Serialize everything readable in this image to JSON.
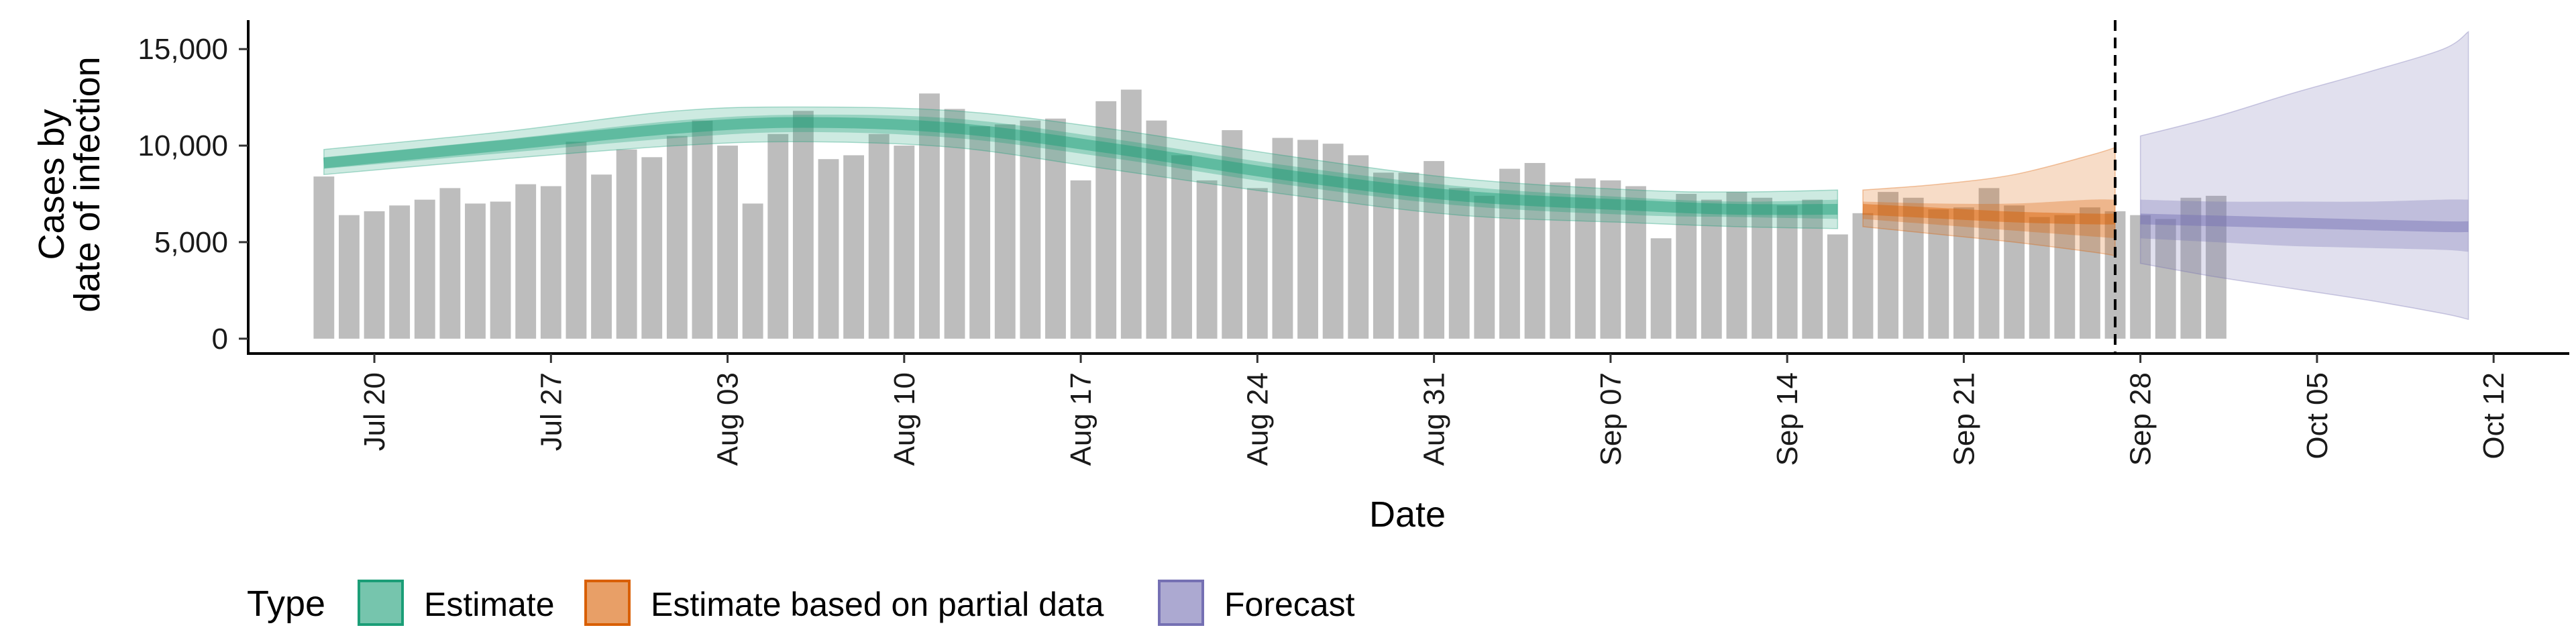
{
  "chart_data": {
    "type": "bar",
    "xlabel": "Date",
    "ylabel_lines": [
      "Cases by",
      "date of infection"
    ],
    "x_ticks": [
      "2020-07-20",
      "2020-07-27",
      "2020-08-03",
      "2020-08-10",
      "2020-08-17",
      "2020-08-24",
      "2020-08-31",
      "2020-09-07",
      "2020-09-14",
      "2020-09-21",
      "2020-09-28",
      "2020-10-05",
      "2020-10-12"
    ],
    "x_tick_labels": [
      "Jul 20",
      "Jul 27",
      "Aug 03",
      "Aug 10",
      "Aug 17",
      "Aug 24",
      "Aug 31",
      "Sep 07",
      "Sep 14",
      "Sep 21",
      "Sep 28",
      "Oct 05",
      "Oct 12"
    ],
    "y_ticks": [
      0,
      5000,
      10000,
      15000
    ],
    "y_tick_labels": [
      "0",
      "5,000",
      "10,000",
      "15,000"
    ],
    "xlim": [
      "2020-07-15",
      "2020-10-15"
    ],
    "ylim": [
      -700,
      16500
    ],
    "reference_line_date": "2020-09-27",
    "grid": false,
    "legend_position": "bottom-left",
    "legend": {
      "title": "Type",
      "entries": [
        {
          "label": "Estimate",
          "fill": "#1b9e77",
          "border": "#1b9e77"
        },
        {
          "label": "Estimate based on partial data",
          "fill": "#d95f02",
          "border": "#d95f02"
        },
        {
          "label": "Forecast",
          "fill": "#7570b3",
          "border": "#7570b3"
        }
      ]
    },
    "bars": {
      "start_date": "2020-07-18",
      "color": "#bdbdbd",
      "values": [
        8400,
        6400,
        6600,
        6900,
        7200,
        7800,
        7000,
        7100,
        8000,
        7900,
        10200,
        8500,
        9800,
        9400,
        10500,
        11300,
        10000,
        7000,
        10600,
        11800,
        9300,
        9500,
        10600,
        10000,
        12700,
        11900,
        11000,
        11100,
        11300,
        11400,
        8200,
        12300,
        12900,
        11300,
        9500,
        8200,
        10800,
        7800,
        10400,
        10300,
        10100,
        9500,
        8600,
        8600,
        9200,
        7800,
        7400,
        8800,
        9100,
        8100,
        8300,
        8200,
        7900,
        5200,
        7500,
        7200,
        7600,
        7300,
        6900,
        7200,
        5400,
        6500,
        7600,
        7300,
        6700,
        6800,
        7800,
        6900,
        6300,
        6400,
        6800,
        6600,
        6400,
        6200,
        7300,
        7400
      ]
    },
    "series": [
      {
        "name": "Estimate",
        "color": "#1b9e77",
        "x": [
          "2020-07-18",
          "2020-07-25",
          "2020-08-01",
          "2020-08-06",
          "2020-08-12",
          "2020-08-18",
          "2020-08-25",
          "2020-09-01",
          "2020-09-08",
          "2020-09-12",
          "2020-09-16"
        ],
        "median": [
          9100,
          10000,
          10900,
          11200,
          10900,
          9900,
          8500,
          7400,
          6900,
          6700,
          6700
        ],
        "inner_lower": [
          8800,
          9600,
          10400,
          10700,
          10400,
          9400,
          8000,
          6900,
          6400,
          6300,
          6200
        ],
        "inner_upper": [
          9400,
          10300,
          11300,
          11600,
          11400,
          10400,
          9000,
          7900,
          7300,
          7100,
          7200
        ],
        "outer_lower": [
          8500,
          9300,
          10000,
          10200,
          9900,
          8800,
          7500,
          6400,
          6000,
          5800,
          5700
        ],
        "outer_upper": [
          9800,
          10700,
          11800,
          12000,
          11800,
          10900,
          9500,
          8300,
          7700,
          7600,
          7700
        ]
      },
      {
        "name": "Estimate based on partial data",
        "color": "#d95f02",
        "x": [
          "2020-09-17",
          "2020-09-20",
          "2020-09-23",
          "2020-09-26",
          "2020-09-27"
        ],
        "median": [
          6700,
          6500,
          6300,
          6200,
          6200
        ],
        "inner_lower": [
          6200,
          5900,
          5600,
          5300,
          5200
        ],
        "inner_upper": [
          7100,
          7000,
          7000,
          7200,
          7200
        ],
        "outer_lower": [
          5800,
          5400,
          5000,
          4500,
          4300
        ],
        "outer_upper": [
          7700,
          8000,
          8500,
          9500,
          9900
        ]
      },
      {
        "name": "Forecast",
        "color": "#7570b3",
        "x": [
          "2020-09-28",
          "2020-10-01",
          "2020-10-04",
          "2020-10-07",
          "2020-10-10",
          "2020-10-11"
        ],
        "median": [
          6200,
          6100,
          6000,
          5900,
          5800,
          5800
        ],
        "inner_lower": [
          5200,
          5000,
          4800,
          4700,
          4600,
          4500
        ],
        "inner_upper": [
          7200,
          7100,
          7100,
          7100,
          7200,
          7200
        ],
        "outer_lower": [
          3900,
          3200,
          2600,
          2000,
          1300,
          1000
        ],
        "outer_upper": [
          10500,
          11500,
          12700,
          13800,
          15000,
          15900
        ]
      }
    ]
  }
}
